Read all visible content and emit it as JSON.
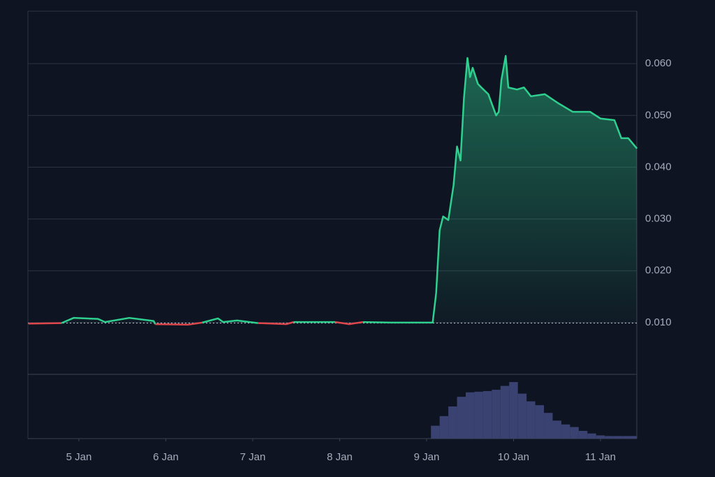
{
  "chart_data": {
    "type": "line",
    "x": [
      4.42,
      4.8,
      4.94,
      5.22,
      5.3,
      5.58,
      5.86,
      5.88,
      6.26,
      6.42,
      6.6,
      6.66,
      6.82,
      7.06,
      7.39,
      7.47,
      7.95,
      8.11,
      8.27,
      8.59,
      9.07,
      9.11,
      9.15,
      9.19,
      9.25,
      9.31,
      9.35,
      9.39,
      9.43,
      9.47,
      9.5,
      9.53,
      9.59,
      9.63,
      9.71,
      9.8,
      9.83,
      9.86,
      9.91,
      9.94,
      10.04,
      10.12,
      10.2,
      10.36,
      10.52,
      10.68,
      10.88,
      11.0,
      11.16,
      11.24,
      11.32,
      11.42
    ],
    "values": [
      0.0098,
      0.0099,
      0.0109,
      0.0107,
      0.0101,
      0.0109,
      0.0103,
      0.0097,
      0.0096,
      0.01,
      0.0108,
      0.0101,
      0.0104,
      0.0099,
      0.0097,
      0.0101,
      0.0101,
      0.0097,
      0.0101,
      0.01,
      0.01,
      0.0157,
      0.0278,
      0.0305,
      0.0298,
      0.0365,
      0.044,
      0.0413,
      0.0534,
      0.0611,
      0.0574,
      0.0592,
      0.0561,
      0.0554,
      0.0541,
      0.05,
      0.0507,
      0.0568,
      0.0615,
      0.0554,
      0.055,
      0.0554,
      0.0537,
      0.0541,
      0.0523,
      0.0507,
      0.0507,
      0.0494,
      0.0491,
      0.0456,
      0.0456,
      0.0436
    ],
    "baseline": 0.0099,
    "up_color": "#2fd08f",
    "down_color": "#e0474c",
    "xlim": [
      4.414,
      11.418
    ],
    "xticks": [
      {
        "value": 5,
        "label": "5 Jan"
      },
      {
        "value": 6,
        "label": "6 Jan"
      },
      {
        "value": 7,
        "label": "7 Jan"
      },
      {
        "value": 8,
        "label": "8 Jan"
      },
      {
        "value": 9,
        "label": "9 Jan"
      },
      {
        "value": 10,
        "label": "10 Jan"
      },
      {
        "value": 11,
        "label": "11 Jan"
      }
    ],
    "ylim": [
      0,
      0.07
    ],
    "yticks": [
      {
        "value": 0.01,
        "label": "0.010"
      },
      {
        "value": 0.02,
        "label": "0.020"
      },
      {
        "value": 0.03,
        "label": "0.030"
      },
      {
        "value": 0.04,
        "label": "0.040"
      },
      {
        "value": 0.05,
        "label": "0.050"
      },
      {
        "value": 0.06,
        "label": "0.060"
      }
    ],
    "grid": true,
    "volume": {
      "color": "#3a4272",
      "x": [
        9.1,
        9.2,
        9.3,
        9.4,
        9.5,
        9.6,
        9.7,
        9.8,
        9.9,
        10.0,
        10.1,
        10.2,
        10.3,
        10.4,
        10.5,
        10.6,
        10.7,
        10.8,
        10.9,
        11.0,
        11.1,
        11.2,
        11.3,
        11.4
      ],
      "values": [
        20,
        35,
        50,
        65,
        72,
        73,
        74,
        76,
        82,
        88,
        70,
        58,
        52,
        40,
        28,
        22,
        18,
        12,
        8,
        5,
        4,
        4,
        4,
        4
      ],
      "ylim": [
        0,
        100
      ]
    }
  }
}
